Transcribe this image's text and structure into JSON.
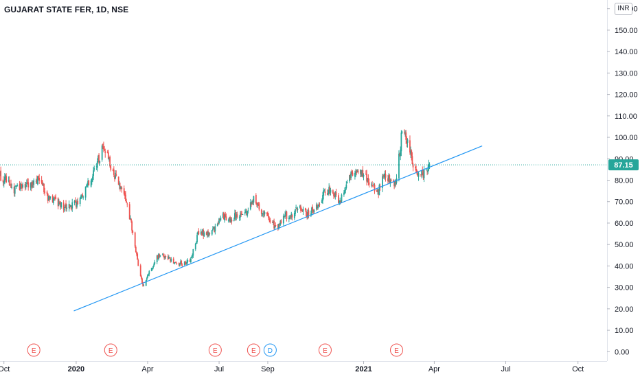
{
  "header": {
    "title": "GUJARAT STATE FER, 1D, NSE",
    "currency": "INR"
  },
  "price_tag": {
    "value": "87.15",
    "color": "#26a69a"
  },
  "colors": {
    "up": "#26a69a",
    "down": "#ef5350",
    "trendline": "#2196f3",
    "price_line": "#26a69a",
    "event_earnings": "#ef5350",
    "event_dividend": "#2196f3"
  },
  "events": [
    {
      "label": "E",
      "type": "earnings",
      "date": "2019-11-08"
    },
    {
      "label": "E",
      "type": "earnings",
      "date": "2020-02-14"
    },
    {
      "label": "E",
      "type": "earnings",
      "date": "2020-06-26"
    },
    {
      "label": "E",
      "type": "earnings",
      "date": "2020-08-14"
    },
    {
      "label": "D",
      "type": "dividend",
      "date": "2020-09-04"
    },
    {
      "label": "E",
      "type": "earnings",
      "date": "2020-11-13"
    },
    {
      "label": "E",
      "type": "earnings",
      "date": "2021-02-12"
    }
  ],
  "chart_data": {
    "type": "candlestick",
    "title": "GUJARAT STATE FER, 1D, NSE",
    "currency": "INR",
    "last_price": 87.15,
    "y_axis": {
      "ticks": [
        "0.00",
        "10.00",
        "20.00",
        "30.00",
        "40.00",
        "50.00",
        "60.00",
        "70.00",
        "80.00",
        "90.00",
        "100.00",
        "110.00",
        "120.00",
        "130.00",
        "140.00",
        "150.00",
        "160.00"
      ],
      "range": [
        -1.5,
        161.5
      ]
    },
    "x_axis": {
      "range": [
        "2019-09-26",
        "2021-11-07"
      ],
      "ticks": [
        {
          "label": "Oct",
          "date": "2019-10-01",
          "bold": false
        },
        {
          "label": "2020",
          "date": "2020-01-01",
          "bold": true
        },
        {
          "label": "Apr",
          "date": "2020-04-01",
          "bold": false
        },
        {
          "label": "Jul",
          "date": "2020-07-01",
          "bold": false
        },
        {
          "label": "Sep",
          "date": "2020-09-01",
          "bold": false
        },
        {
          "label": "2021",
          "date": "2021-01-01",
          "bold": true
        },
        {
          "label": "Apr",
          "date": "2021-04-01",
          "bold": false
        },
        {
          "label": "Jul",
          "date": "2021-07-01",
          "bold": false
        },
        {
          "label": "Oct",
          "date": "2021-10-01",
          "bold": false
        }
      ]
    },
    "trendline": {
      "from": {
        "date": "2019-12-29",
        "price": 19.0
      },
      "to": {
        "date": "2021-06-01",
        "price": 96.0
      }
    },
    "close_path": [
      [
        "2019-09-26",
        82
      ],
      [
        "2019-10-05",
        80
      ],
      [
        "2019-10-15",
        75
      ],
      [
        "2019-10-25",
        78
      ],
      [
        "2019-11-05",
        77
      ],
      [
        "2019-11-15",
        82
      ],
      [
        "2019-11-25",
        72
      ],
      [
        "2019-12-05",
        70
      ],
      [
        "2019-12-15",
        68
      ],
      [
        "2019-12-25",
        68
      ],
      [
        "2020-01-05",
        70
      ],
      [
        "2020-01-15",
        78
      ],
      [
        "2020-01-25",
        85
      ],
      [
        "2020-02-05",
        96
      ],
      [
        "2020-02-12",
        88
      ],
      [
        "2020-02-20",
        82
      ],
      [
        "2020-03-01",
        74
      ],
      [
        "2020-03-10",
        62
      ],
      [
        "2020-03-20",
        40
      ],
      [
        "2020-03-26",
        31
      ],
      [
        "2020-04-05",
        38
      ],
      [
        "2020-04-15",
        45
      ],
      [
        "2020-04-25",
        44
      ],
      [
        "2020-05-05",
        42
      ],
      [
        "2020-05-15",
        41
      ],
      [
        "2020-05-25",
        42
      ],
      [
        "2020-06-05",
        56
      ],
      [
        "2020-06-15",
        55
      ],
      [
        "2020-06-25",
        57
      ],
      [
        "2020-07-05",
        63
      ],
      [
        "2020-07-15",
        62
      ],
      [
        "2020-07-25",
        64
      ],
      [
        "2020-08-05",
        65
      ],
      [
        "2020-08-15",
        72
      ],
      [
        "2020-08-25",
        65
      ],
      [
        "2020-09-05",
        61
      ],
      [
        "2020-09-12",
        57
      ],
      [
        "2020-09-20",
        63
      ],
      [
        "2020-10-01",
        64
      ],
      [
        "2020-10-10",
        67
      ],
      [
        "2020-10-20",
        64
      ],
      [
        "2020-11-01",
        67
      ],
      [
        "2020-11-10",
        73
      ],
      [
        "2020-11-20",
        76
      ],
      [
        "2020-12-01",
        70
      ],
      [
        "2020-12-10",
        77
      ],
      [
        "2020-12-20",
        85
      ],
      [
        "2021-01-01",
        83
      ],
      [
        "2021-01-10",
        78
      ],
      [
        "2021-01-20",
        75
      ],
      [
        "2021-01-28",
        84
      ],
      [
        "2021-02-05",
        78
      ],
      [
        "2021-02-12",
        80
      ],
      [
        "2021-02-18",
        100
      ],
      [
        "2021-02-25",
        100
      ],
      [
        "2021-03-05",
        88
      ],
      [
        "2021-03-12",
        82
      ],
      [
        "2021-03-20",
        83
      ],
      [
        "2021-03-26",
        87.15
      ]
    ]
  }
}
